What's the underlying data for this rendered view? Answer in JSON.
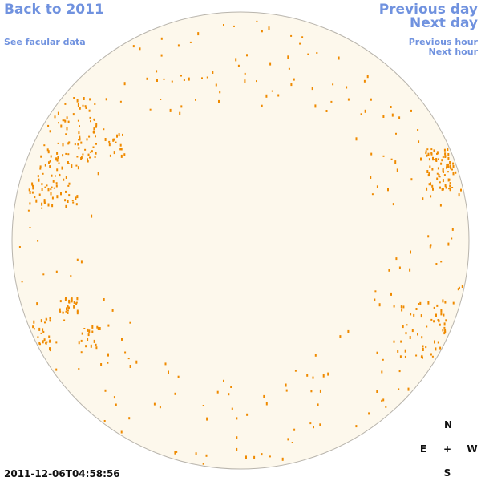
{
  "nav": {
    "back": "Back to 2011",
    "facular": "See facular data",
    "previous_day": "Previous day",
    "next_day": "Next day",
    "previous_hour": "Previous hour",
    "next_hour": "Next hour"
  },
  "timestamp": "2011-12-06T04:58:56",
  "compass": {
    "north": "N",
    "east": "E",
    "center": "+",
    "west": "W",
    "south": "S"
  }
}
